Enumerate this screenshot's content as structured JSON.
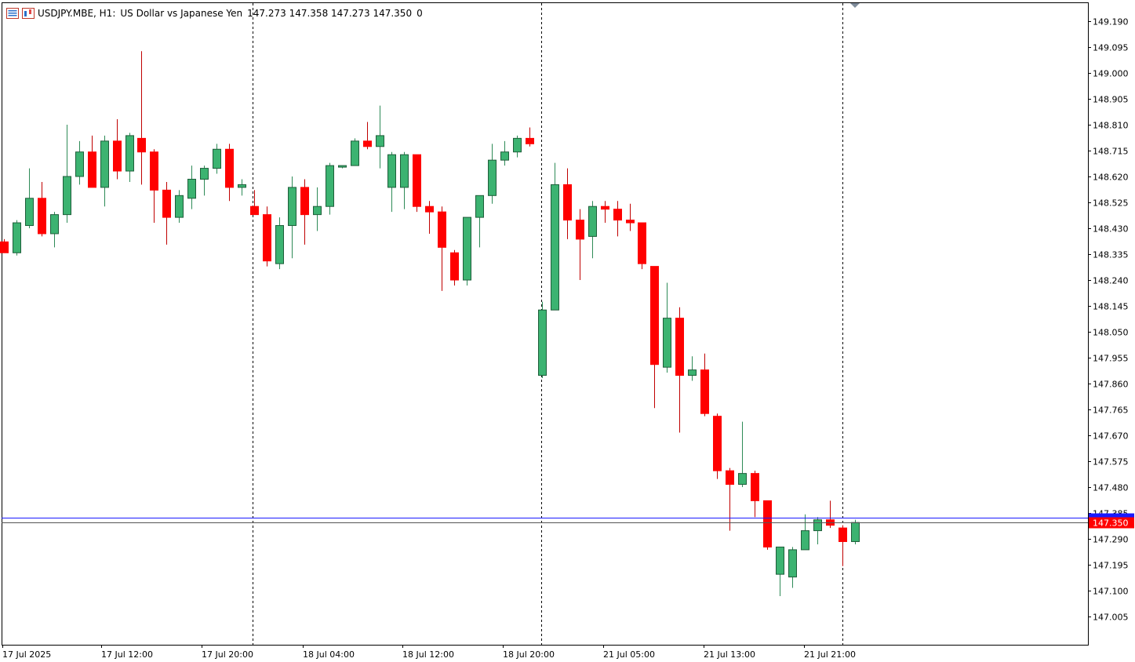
{
  "header": {
    "symbol": "USDJPY.MBE, H1:",
    "description": "US Dollar vs Japanese Yen",
    "ohlc": "147.273 147.358 147.273 147.350",
    "volume": "0"
  },
  "colors": {
    "bull": "#3cb371",
    "bear": "#ff0000",
    "wick": "#000000",
    "grid_separator": "#000000",
    "ask_line": "#1a1aff",
    "bid_line": "#ff0000",
    "axis": "#000000",
    "background": "#ffffff"
  },
  "chart_data": {
    "type": "candlestick",
    "y_ticks": [
      "149.190",
      "149.095",
      "149.000",
      "148.905",
      "148.810",
      "148.715",
      "148.620",
      "148.525",
      "148.430",
      "148.335",
      "148.240",
      "148.145",
      "148.050",
      "147.955",
      "147.860",
      "147.765",
      "147.670",
      "147.575",
      "147.480",
      "147.385",
      "147.290",
      "147.195",
      "147.100",
      "147.005"
    ],
    "x_ticks": [
      "17 Jul 2025",
      "17 Jul 12:00",
      "17 Jul 20:00",
      "18 Jul 04:00",
      "18 Jul 12:00",
      "18 Jul 20:00",
      "21 Jul 05:00",
      "21 Jul 13:00",
      "21 Jul 21:00"
    ],
    "current_price_label": "147.350",
    "ask_price": 147.367,
    "bid_price": 147.35,
    "day_separators": [
      "18 Jul 00:00",
      "21 Jul 00:00",
      "22 Jul 00:00"
    ],
    "candles": [
      {
        "o": 148.38,
        "h": 148.39,
        "l": 148.34,
        "c": 148.34
      },
      {
        "o": 148.34,
        "h": 148.46,
        "l": 148.33,
        "c": 148.45
      },
      {
        "o": 148.44,
        "h": 148.65,
        "l": 148.43,
        "c": 148.54
      },
      {
        "o": 148.54,
        "h": 148.6,
        "l": 148.4,
        "c": 148.41
      },
      {
        "o": 148.41,
        "h": 148.49,
        "l": 148.36,
        "c": 148.48
      },
      {
        "o": 148.48,
        "h": 148.81,
        "l": 148.45,
        "c": 148.62
      },
      {
        "o": 148.62,
        "h": 148.75,
        "l": 148.59,
        "c": 148.71
      },
      {
        "o": 148.71,
        "h": 148.77,
        "l": 148.58,
        "c": 148.58
      },
      {
        "o": 148.58,
        "h": 148.77,
        "l": 148.51,
        "c": 148.75
      },
      {
        "o": 148.75,
        "h": 148.83,
        "l": 148.61,
        "c": 148.64
      },
      {
        "o": 148.64,
        "h": 148.78,
        "l": 148.6,
        "c": 148.77
      },
      {
        "o": 148.76,
        "h": 149.08,
        "l": 148.59,
        "c": 148.71
      },
      {
        "o": 148.71,
        "h": 148.72,
        "l": 148.45,
        "c": 148.57
      },
      {
        "o": 148.57,
        "h": 148.6,
        "l": 148.37,
        "c": 148.47
      },
      {
        "o": 148.47,
        "h": 148.57,
        "l": 148.45,
        "c": 148.55
      },
      {
        "o": 148.54,
        "h": 148.66,
        "l": 148.5,
        "c": 148.61
      },
      {
        "o": 148.61,
        "h": 148.66,
        "l": 148.55,
        "c": 148.65
      },
      {
        "o": 148.65,
        "h": 148.74,
        "l": 148.63,
        "c": 148.72
      },
      {
        "o": 148.72,
        "h": 148.74,
        "l": 148.53,
        "c": 148.58
      },
      {
        "o": 148.58,
        "h": 148.61,
        "l": 148.55,
        "c": 148.59
      },
      {
        "o": 148.51,
        "h": 148.57,
        "l": 148.48,
        "c": 148.48
      },
      {
        "o": 148.48,
        "h": 148.51,
        "l": 148.29,
        "c": 148.31
      },
      {
        "o": 148.3,
        "h": 148.47,
        "l": 148.28,
        "c": 148.44
      },
      {
        "o": 148.44,
        "h": 148.62,
        "l": 148.32,
        "c": 148.58
      },
      {
        "o": 148.58,
        "h": 148.61,
        "l": 148.37,
        "c": 148.48
      },
      {
        "o": 148.48,
        "h": 148.58,
        "l": 148.42,
        "c": 148.51
      },
      {
        "o": 148.51,
        "h": 148.67,
        "l": 148.48,
        "c": 148.66
      },
      {
        "o": 148.66,
        "h": 148.66,
        "l": 148.65,
        "c": 148.66
      },
      {
        "o": 148.66,
        "h": 148.76,
        "l": 148.66,
        "c": 148.75
      },
      {
        "o": 148.75,
        "h": 148.82,
        "l": 148.72,
        "c": 148.73
      },
      {
        "o": 148.73,
        "h": 148.88,
        "l": 148.65,
        "c": 148.77
      },
      {
        "o": 148.58,
        "h": 148.71,
        "l": 148.49,
        "c": 148.7
      },
      {
        "o": 148.58,
        "h": 148.71,
        "l": 148.5,
        "c": 148.7
      },
      {
        "o": 148.7,
        "h": 148.7,
        "l": 148.49,
        "c": 148.51
      },
      {
        "o": 148.51,
        "h": 148.53,
        "l": 148.41,
        "c": 148.49
      },
      {
        "o": 148.49,
        "h": 148.51,
        "l": 148.2,
        "c": 148.36
      },
      {
        "o": 148.34,
        "h": 148.35,
        "l": 148.22,
        "c": 148.24
      },
      {
        "o": 148.24,
        "h": 148.47,
        "l": 148.22,
        "c": 148.47
      },
      {
        "o": 148.47,
        "h": 148.55,
        "l": 148.36,
        "c": 148.55
      },
      {
        "o": 148.55,
        "h": 148.74,
        "l": 148.52,
        "c": 148.68
      },
      {
        "o": 148.68,
        "h": 148.75,
        "l": 148.66,
        "c": 148.71
      },
      {
        "o": 148.71,
        "h": 148.77,
        "l": 148.69,
        "c": 148.76
      },
      {
        "o": 148.76,
        "h": 148.8,
        "l": 148.73,
        "c": 148.74
      },
      {
        "o": 147.89,
        "h": 148.16,
        "l": 147.88,
        "c": 148.13
      },
      {
        "o": 148.13,
        "h": 148.67,
        "l": 148.13,
        "c": 148.59
      },
      {
        "o": 148.59,
        "h": 148.65,
        "l": 148.39,
        "c": 148.46
      },
      {
        "o": 148.46,
        "h": 148.5,
        "l": 148.24,
        "c": 148.39
      },
      {
        "o": 148.4,
        "h": 148.53,
        "l": 148.32,
        "c": 148.51
      },
      {
        "o": 148.51,
        "h": 148.53,
        "l": 148.45,
        "c": 148.5
      },
      {
        "o": 148.5,
        "h": 148.53,
        "l": 148.4,
        "c": 148.46
      },
      {
        "o": 148.46,
        "h": 148.52,
        "l": 148.42,
        "c": 148.45
      },
      {
        "o": 148.45,
        "h": 148.45,
        "l": 148.28,
        "c": 148.3
      },
      {
        "o": 148.29,
        "h": 148.29,
        "l": 147.77,
        "c": 147.93
      },
      {
        "o": 147.92,
        "h": 148.23,
        "l": 147.9,
        "c": 148.1
      },
      {
        "o": 148.1,
        "h": 148.14,
        "l": 147.68,
        "c": 147.89
      },
      {
        "o": 147.89,
        "h": 147.96,
        "l": 147.87,
        "c": 147.91
      },
      {
        "o": 147.91,
        "h": 147.97,
        "l": 147.74,
        "c": 147.75
      },
      {
        "o": 147.74,
        "h": 147.75,
        "l": 147.51,
        "c": 147.54
      },
      {
        "o": 147.54,
        "h": 147.55,
        "l": 147.32,
        "c": 147.49
      },
      {
        "o": 147.49,
        "h": 147.72,
        "l": 147.48,
        "c": 147.53
      },
      {
        "o": 147.53,
        "h": 147.54,
        "l": 147.37,
        "c": 147.43
      },
      {
        "o": 147.43,
        "h": 147.43,
        "l": 147.25,
        "c": 147.26
      },
      {
        "o": 147.16,
        "h": 147.26,
        "l": 147.08,
        "c": 147.26
      },
      {
        "o": 147.15,
        "h": 147.26,
        "l": 147.11,
        "c": 147.25
      },
      {
        "o": 147.25,
        "h": 147.38,
        "l": 147.25,
        "c": 147.32
      },
      {
        "o": 147.32,
        "h": 147.37,
        "l": 147.27,
        "c": 147.36
      },
      {
        "o": 147.36,
        "h": 147.43,
        "l": 147.33,
        "c": 147.34
      },
      {
        "o": 147.33,
        "h": 147.34,
        "l": 147.19,
        "c": 147.28
      },
      {
        "o": 147.28,
        "h": 147.36,
        "l": 147.27,
        "c": 147.35
      }
    ]
  }
}
